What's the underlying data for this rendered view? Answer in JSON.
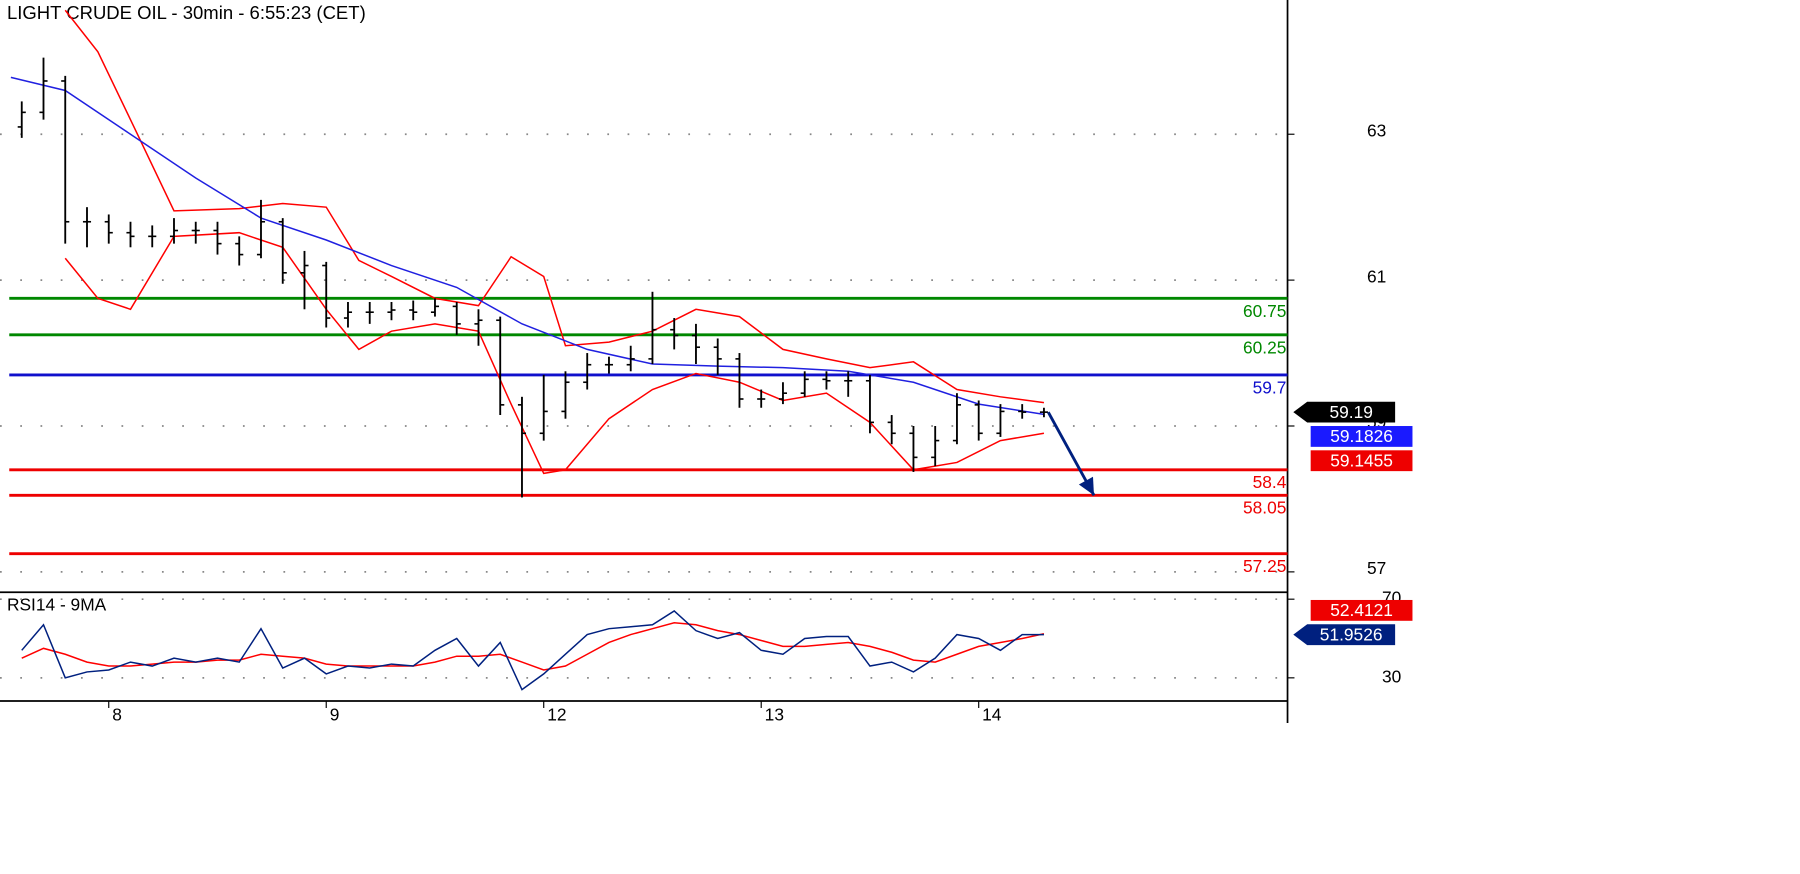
{
  "chart_data": [
    {
      "type": "ohlc",
      "title": "LIGHT CRUDE OIL - 30min - 6:55:23 (CET)",
      "x": [
        1,
        2,
        3,
        4,
        5,
        6,
        7,
        8,
        9,
        10,
        11,
        12,
        13,
        14,
        15,
        16,
        17,
        18,
        19,
        20,
        21,
        22,
        23,
        24,
        25,
        26,
        27,
        28,
        29,
        30,
        31,
        32,
        33,
        34,
        35,
        36,
        37,
        38,
        39,
        40,
        41,
        42,
        43,
        44,
        45,
        46,
        47,
        48
      ],
      "open": [
        63.1,
        63.3,
        63.73,
        61.8,
        61.8,
        61.65,
        61.6,
        61.6,
        61.68,
        61.68,
        61.5,
        61.35,
        61.8,
        61.1,
        61.2,
        60.48,
        60.56,
        60.56,
        60.59,
        60.56,
        60.64,
        60.4,
        60.45,
        59.29,
        58.9,
        59.2,
        59.6,
        59.84,
        59.84,
        59.92,
        60.32,
        60.24,
        60.08,
        59.92,
        59.37,
        59.37,
        59.45,
        59.64,
        59.62,
        59.62,
        59.05,
        58.9,
        58.57,
        58.8,
        59.29,
        58.9,
        59.2,
        59.19
      ],
      "high": [
        63.45,
        64.05,
        63.8,
        62.0,
        61.9,
        61.8,
        61.75,
        61.85,
        61.8,
        61.8,
        61.6,
        62.1,
        61.85,
        61.4,
        61.25,
        60.7,
        60.7,
        60.7,
        60.72,
        60.75,
        60.7,
        60.6,
        60.5,
        59.4,
        59.7,
        59.75,
        60.0,
        59.95,
        60.1,
        60.84,
        60.48,
        60.4,
        60.2,
        60.0,
        59.5,
        59.6,
        59.75,
        59.75,
        59.75,
        59.7,
        59.15,
        59.0,
        59.0,
        59.45,
        59.35,
        59.3,
        59.3,
        59.25
      ],
      "low": [
        62.95,
        63.2,
        61.5,
        61.45,
        61.5,
        61.45,
        61.45,
        61.5,
        61.5,
        61.35,
        61.2,
        61.3,
        60.95,
        60.6,
        60.35,
        60.35,
        60.4,
        60.45,
        60.45,
        60.5,
        60.25,
        60.1,
        59.15,
        58.02,
        58.8,
        59.1,
        59.5,
        59.72,
        59.75,
        59.85,
        60.05,
        59.85,
        59.7,
        59.25,
        59.25,
        59.3,
        59.4,
        59.5,
        59.4,
        58.9,
        58.75,
        58.37,
        58.45,
        58.75,
        58.8,
        58.85,
        59.1,
        59.12
      ],
      "close": [
        63.3,
        63.73,
        61.8,
        61.8,
        61.65,
        61.6,
        61.6,
        61.68,
        61.68,
        61.5,
        61.35,
        61.8,
        61.1,
        61.2,
        60.48,
        60.56,
        60.56,
        60.59,
        60.56,
        60.64,
        60.4,
        60.45,
        59.29,
        58.9,
        59.2,
        59.6,
        59.84,
        59.84,
        59.92,
        60.32,
        60.24,
        60.08,
        59.92,
        59.37,
        59.37,
        59.45,
        59.64,
        59.62,
        59.62,
        59.05,
        58.9,
        58.57,
        58.8,
        59.29,
        58.9,
        59.2,
        59.19,
        59.19
      ],
      "color": "#000000",
      "xlim": [
        0,
        59.2
      ],
      "ylim": [
        56.72,
        64.84
      ],
      "yticks": [
        57,
        59,
        61,
        63
      ],
      "grid": true,
      "lines": [
        {
          "color": "#ff0000",
          "x": [
            3,
            4.5,
            6,
            8,
            11,
            13,
            15,
            16.5,
            18,
            20,
            22,
            23.5,
            25,
            26,
            28,
            30,
            32,
            34,
            36,
            38,
            40,
            42,
            44,
            46,
            48
          ],
          "values": [
            64.7,
            64.13,
            63.2,
            61.95,
            61.98,
            62.05,
            62.0,
            61.27,
            61.05,
            60.75,
            60.65,
            61.32,
            61.05,
            60.1,
            60.15,
            60.3,
            60.6,
            60.5,
            60.05,
            59.92,
            59.8,
            59.88,
            59.5,
            59.4,
            59.32
          ]
        },
        {
          "color": "#ff0000",
          "x": [
            3,
            4.5,
            6,
            8,
            11,
            13,
            15,
            16.5,
            18,
            20,
            22,
            23.5,
            25,
            26,
            28,
            30,
            32,
            34,
            36,
            38,
            40,
            42,
            44,
            46,
            48
          ],
          "values": [
            61.3,
            60.75,
            60.6,
            61.6,
            61.65,
            61.45,
            60.6,
            60.05,
            60.3,
            60.4,
            60.3,
            59.3,
            58.35,
            58.4,
            59.1,
            59.5,
            59.72,
            59.6,
            59.35,
            59.45,
            59.05,
            58.4,
            58.5,
            58.8,
            58.9
          ]
        },
        {
          "color": "#2020e0",
          "x": [
            0.5,
            3,
            6,
            9,
            12,
            15,
            18,
            21,
            24,
            27,
            30,
            33,
            36,
            39,
            42,
            45,
            48
          ],
          "values": [
            63.78,
            63.6,
            63.0,
            62.4,
            61.85,
            61.55,
            61.2,
            60.9,
            60.4,
            60.05,
            59.85,
            59.82,
            59.8,
            59.75,
            59.6,
            59.3,
            59.16
          ]
        }
      ],
      "levels": [
        {
          "value": 60.75,
          "color": "#008800"
        },
        {
          "value": 60.25,
          "color": "#008800"
        },
        {
          "value": 59.7,
          "color": "#1010cc"
        },
        {
          "value": 58.4,
          "color": "#ee0000"
        },
        {
          "value": 58.05,
          "color": "#ee0000"
        },
        {
          "value": 57.25,
          "color": "#ee0000"
        }
      ],
      "forecast": {
        "x": [
          48.2,
          50.3
        ],
        "values": [
          59.19,
          58.05
        ],
        "color": "#00207f"
      },
      "markers": [
        {
          "value": 59.19,
          "color": "#000000",
          "pointer": true
        },
        {
          "value": 59.1826,
          "color": "#1a1aff"
        },
        {
          "value": 59.1455,
          "color": "#ee0000"
        }
      ]
    },
    {
      "type": "line",
      "title": "RSI14 - 9MA",
      "x": [
        1,
        2,
        3,
        4,
        5,
        6,
        7,
        8,
        9,
        10,
        11,
        12,
        13,
        14,
        15,
        16,
        17,
        18,
        19,
        20,
        21,
        22,
        23,
        24,
        25,
        26,
        27,
        28,
        29,
        30,
        31,
        32,
        33,
        34,
        35,
        36,
        37,
        38,
        39,
        40,
        41,
        42,
        43,
        44,
        45,
        46,
        47,
        48
      ],
      "series": [
        {
          "color": "#00207f",
          "values": [
            44,
            57,
            30,
            33,
            34,
            38,
            36,
            40,
            38,
            40,
            38,
            55,
            35,
            40,
            32,
            36,
            35,
            37,
            36,
            44,
            50,
            36,
            48,
            24,
            32,
            42,
            52,
            55,
            56,
            57,
            64,
            54,
            50,
            53,
            44,
            42,
            50,
            51,
            51,
            36,
            38,
            33,
            40,
            52,
            50,
            44,
            52,
            51.95
          ]
        },
        {
          "color": "#ff0000",
          "values": [
            40,
            45,
            42,
            38,
            36,
            36,
            37,
            38,
            38,
            39,
            39,
            42,
            41,
            40,
            37,
            36,
            36,
            36,
            36,
            38,
            41,
            41,
            42,
            38,
            34,
            36,
            42,
            48,
            52,
            55,
            58,
            57,
            54,
            52,
            49,
            46,
            46,
            47,
            48,
            46,
            43,
            39,
            38,
            42,
            46,
            48,
            50,
            52.41
          ]
        }
      ],
      "xlim": [
        0,
        59.2
      ],
      "xticks": [
        {
          "value": 5,
          "label": "8"
        },
        {
          "value": 15,
          "label": "9"
        },
        {
          "value": 25,
          "label": "12"
        },
        {
          "value": 35,
          "label": "13"
        },
        {
          "value": 45,
          "label": "14"
        }
      ],
      "ylim": [
        18.2,
        73.5
      ],
      "yticks": [
        30,
        70
      ],
      "grid": true,
      "markers": [
        {
          "value": 52.4121,
          "color": "#ee0000"
        },
        {
          "value": 51.9526,
          "color": "#00207f",
          "pointer": true
        }
      ]
    }
  ]
}
